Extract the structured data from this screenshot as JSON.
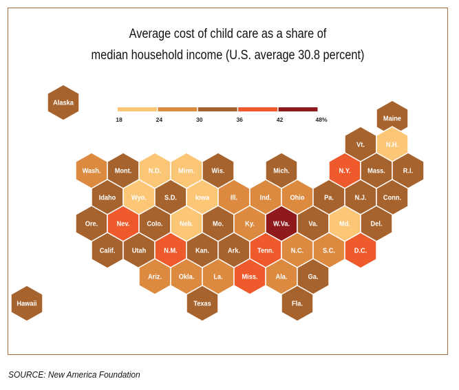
{
  "title": {
    "line1": "Average cost of child care as a share of",
    "line2": "median household income (U.S. average 30.8 percent)"
  },
  "source": "SOURCE: New America Foundation",
  "legend": {
    "ticks": [
      "18",
      "24",
      "30",
      "36",
      "42",
      "48%"
    ],
    "colors": [
      "#fcc677",
      "#dc8a40",
      "#a6632e",
      "#ef5a2c",
      "#8e1a1c"
    ]
  },
  "label_color": "#ffffff",
  "states": [
    {
      "label": "Alaska",
      "bin": 2
    },
    {
      "label": "Hawaii",
      "bin": 2
    },
    {
      "label": "Maine",
      "bin": 2
    },
    {
      "label": "Vt.",
      "bin": 2
    },
    {
      "label": "N.H.",
      "bin": 0
    },
    {
      "label": "Wash.",
      "bin": 1
    },
    {
      "label": "Mont.",
      "bin": 2
    },
    {
      "label": "N.D.",
      "bin": 0
    },
    {
      "label": "Minn.",
      "bin": 0
    },
    {
      "label": "Wis.",
      "bin": 2
    },
    {
      "label": "Mich.",
      "bin": 2
    },
    {
      "label": "N.Y.",
      "bin": 3
    },
    {
      "label": "Mass.",
      "bin": 2
    },
    {
      "label": "R.I.",
      "bin": 2
    },
    {
      "label": "Idaho",
      "bin": 2
    },
    {
      "label": "Wyo.",
      "bin": 0
    },
    {
      "label": "S.D.",
      "bin": 2
    },
    {
      "label": "Iowa",
      "bin": 0
    },
    {
      "label": "Ill.",
      "bin": 1
    },
    {
      "label": "Ind.",
      "bin": 1
    },
    {
      "label": "Ohio",
      "bin": 1
    },
    {
      "label": "Pa.",
      "bin": 2
    },
    {
      "label": "N.J.",
      "bin": 2
    },
    {
      "label": "Conn.",
      "bin": 2
    },
    {
      "label": "Ore.",
      "bin": 2
    },
    {
      "label": "Nev.",
      "bin": 3
    },
    {
      "label": "Colo.",
      "bin": 2
    },
    {
      "label": "Neb.",
      "bin": 0
    },
    {
      "label": "Mo.",
      "bin": 2
    },
    {
      "label": "Ky.",
      "bin": 1
    },
    {
      "label": "W.Va.",
      "bin": 4
    },
    {
      "label": "Va.",
      "bin": 2
    },
    {
      "label": "Md.",
      "bin": 0
    },
    {
      "label": "Del.",
      "bin": 2
    },
    {
      "label": "Calif.",
      "bin": 2
    },
    {
      "label": "Utah",
      "bin": 2
    },
    {
      "label": "N.M.",
      "bin": 3
    },
    {
      "label": "Kan.",
      "bin": 2
    },
    {
      "label": "Ark.",
      "bin": 2
    },
    {
      "label": "Tenn.",
      "bin": 3
    },
    {
      "label": "N.C.",
      "bin": 1
    },
    {
      "label": "S.C.",
      "bin": 1
    },
    {
      "label": "D.C.",
      "bin": 3
    },
    {
      "label": "Ariz.",
      "bin": 1
    },
    {
      "label": "Okla.",
      "bin": 1
    },
    {
      "label": "La.",
      "bin": 1
    },
    {
      "label": "Miss.",
      "bin": 3
    },
    {
      "label": "Ala.",
      "bin": 1
    },
    {
      "label": "Ga.",
      "bin": 2
    },
    {
      "label": "Texas",
      "bin": 2
    },
    {
      "label": "Fla.",
      "bin": 2
    }
  ]
}
